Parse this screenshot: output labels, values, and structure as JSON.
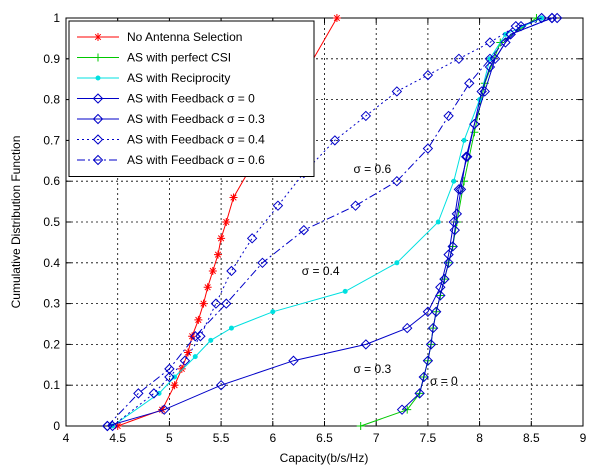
{
  "chart_data": {
    "type": "line",
    "xlabel": "Capacity(b/s/Hz)",
    "ylabel": "Cumulative Distribution Function",
    "xlim": [
      4,
      9
    ],
    "ylim": [
      0,
      1
    ],
    "xticks": [
      "4",
      "4.5",
      "5",
      "5.5",
      "6",
      "6.5",
      "7",
      "7.5",
      "8",
      "8.5",
      "9"
    ],
    "yticks": [
      "0",
      "0.1",
      "0.2",
      "0.3",
      "0.4",
      "0.5",
      "0.6",
      "0.7",
      "0.8",
      "0.9",
      "1"
    ],
    "grid": true,
    "legend_position": "top-left",
    "series": [
      {
        "name": "No Antenna Selection",
        "color": "#ff0000",
        "line": "solid",
        "marker": "star",
        "points": [
          [
            4.5,
            0
          ],
          [
            4.93,
            0.04
          ],
          [
            5.05,
            0.1
          ],
          [
            5.12,
            0.14
          ],
          [
            5.18,
            0.18
          ],
          [
            5.22,
            0.22
          ],
          [
            5.28,
            0.26
          ],
          [
            5.33,
            0.3
          ],
          [
            5.37,
            0.34
          ],
          [
            5.42,
            0.38
          ],
          [
            5.47,
            0.42
          ],
          [
            5.5,
            0.46
          ],
          [
            5.55,
            0.5
          ],
          [
            5.62,
            0.56
          ],
          [
            6.62,
            1.0
          ]
        ]
      },
      {
        "name": "AS with perfect CSI",
        "color": "#00c800",
        "line": "solid",
        "marker": "plus",
        "points": [
          [
            6.85,
            0
          ],
          [
            7.3,
            0.04
          ],
          [
            7.42,
            0.08
          ],
          [
            7.46,
            0.12
          ],
          [
            7.5,
            0.16
          ],
          [
            7.53,
            0.2
          ],
          [
            7.55,
            0.24
          ],
          [
            7.58,
            0.28
          ],
          [
            7.62,
            0.32
          ],
          [
            7.66,
            0.36
          ],
          [
            7.7,
            0.4
          ],
          [
            7.74,
            0.44
          ],
          [
            7.78,
            0.5
          ],
          [
            7.85,
            0.6
          ],
          [
            7.95,
            0.72
          ],
          [
            8.05,
            0.84
          ],
          [
            8.2,
            0.94
          ],
          [
            8.55,
            1.0
          ]
        ]
      },
      {
        "name": "AS with Reciprocity",
        "color": "#00e0e0",
        "line": "solid",
        "marker": "dot",
        "points": [
          [
            4.45,
            0
          ],
          [
            4.9,
            0.08
          ],
          [
            5.05,
            0.12
          ],
          [
            5.25,
            0.17
          ],
          [
            5.4,
            0.21
          ],
          [
            5.6,
            0.24
          ],
          [
            6.0,
            0.28
          ],
          [
            6.7,
            0.33
          ],
          [
            7.2,
            0.4
          ],
          [
            7.6,
            0.5
          ],
          [
            7.75,
            0.6
          ],
          [
            7.85,
            0.7
          ],
          [
            8.0,
            0.8
          ],
          [
            8.1,
            0.9
          ],
          [
            8.25,
            0.96
          ],
          [
            8.6,
            1.0
          ]
        ]
      },
      {
        "name": "AS with Feedback σ = 0",
        "color": "#0000c8",
        "line": "solid",
        "marker": "diamond",
        "points": [
          [
            7.25,
            0.04
          ],
          [
            7.42,
            0.08
          ],
          [
            7.46,
            0.12
          ],
          [
            7.5,
            0.16
          ],
          [
            7.53,
            0.2
          ],
          [
            7.55,
            0.24
          ],
          [
            7.58,
            0.28
          ],
          [
            7.62,
            0.32
          ],
          [
            7.66,
            0.36
          ],
          [
            7.7,
            0.4
          ],
          [
            7.74,
            0.44
          ],
          [
            7.76,
            0.48
          ],
          [
            7.78,
            0.52
          ],
          [
            7.82,
            0.58
          ],
          [
            7.87,
            0.66
          ],
          [
            7.95,
            0.74
          ],
          [
            8.02,
            0.82
          ],
          [
            8.1,
            0.88
          ],
          [
            8.25,
            0.94
          ],
          [
            8.4,
            0.98
          ],
          [
            8.6,
            1.0
          ]
        ]
      },
      {
        "name": "AS with Feedback σ = 0.3",
        "color": "#0000c8",
        "line": "solid",
        "marker": "diamond",
        "points": [
          [
            4.4,
            0
          ],
          [
            4.95,
            0.04
          ],
          [
            5.5,
            0.1
          ],
          [
            6.2,
            0.16
          ],
          [
            6.9,
            0.2
          ],
          [
            7.3,
            0.24
          ],
          [
            7.5,
            0.28
          ],
          [
            7.62,
            0.34
          ],
          [
            7.7,
            0.42
          ],
          [
            7.75,
            0.5
          ],
          [
            7.8,
            0.58
          ],
          [
            7.88,
            0.66
          ],
          [
            7.95,
            0.74
          ],
          [
            8.05,
            0.82
          ],
          [
            8.15,
            0.9
          ],
          [
            8.3,
            0.96
          ],
          [
            8.7,
            1.0
          ]
        ]
      },
      {
        "name": "AS with Feedback σ = 0.4",
        "color": "#0000c8",
        "line": "dotted",
        "marker": "diamond",
        "points": [
          [
            4.45,
            0
          ],
          [
            4.85,
            0.08
          ],
          [
            5.0,
            0.12
          ],
          [
            5.15,
            0.16
          ],
          [
            5.3,
            0.22
          ],
          [
            5.45,
            0.3
          ],
          [
            5.6,
            0.38
          ],
          [
            5.8,
            0.46
          ],
          [
            6.05,
            0.54
          ],
          [
            6.3,
            0.62
          ],
          [
            6.6,
            0.7
          ],
          [
            6.9,
            0.76
          ],
          [
            7.2,
            0.82
          ],
          [
            7.5,
            0.86
          ],
          [
            7.8,
            0.9
          ],
          [
            8.1,
            0.94
          ],
          [
            8.35,
            0.98
          ],
          [
            8.75,
            1.0
          ]
        ]
      },
      {
        "name": "AS with Feedback σ = 0.6",
        "color": "#0000c8",
        "line": "dashdot",
        "marker": "diamond",
        "points": [
          [
            4.4,
            0
          ],
          [
            4.7,
            0.08
          ],
          [
            5.0,
            0.14
          ],
          [
            5.25,
            0.22
          ],
          [
            5.55,
            0.3
          ],
          [
            5.9,
            0.4
          ],
          [
            6.3,
            0.48
          ],
          [
            6.8,
            0.54
          ],
          [
            7.2,
            0.6
          ],
          [
            7.5,
            0.68
          ],
          [
            7.7,
            0.76
          ],
          [
            7.9,
            0.84
          ],
          [
            8.1,
            0.9
          ],
          [
            8.3,
            0.96
          ],
          [
            8.7,
            1.0
          ]
        ]
      }
    ],
    "annotations": [
      {
        "text": "σ = 0.6",
        "x": 6.78,
        "y": 0.62
      },
      {
        "text": "σ = 0.4",
        "x": 6.28,
        "y": 0.37
      },
      {
        "text": "σ = 0.3",
        "x": 6.78,
        "y": 0.13
      },
      {
        "text": "σ = 0",
        "x": 7.52,
        "y": 0.1
      }
    ]
  }
}
